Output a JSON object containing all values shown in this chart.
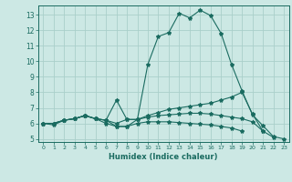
{
  "title": "",
  "xlabel": "Humidex (Indice chaleur)",
  "ylabel": "",
  "background_color": "#cce8e4",
  "grid_color": "#aacfca",
  "line_color": "#1a6b60",
  "xlim": [
    -0.5,
    23.5
  ],
  "ylim": [
    4.8,
    13.6
  ],
  "yticks": [
    5,
    6,
    7,
    8,
    9,
    10,
    11,
    12,
    13
  ],
  "xticks": [
    0,
    1,
    2,
    3,
    4,
    5,
    6,
    7,
    8,
    9,
    10,
    11,
    12,
    13,
    14,
    15,
    16,
    17,
    18,
    19,
    20,
    21,
    22,
    23
  ],
  "series": [
    [
      6.0,
      5.9,
      6.2,
      6.3,
      6.5,
      6.3,
      6.2,
      5.8,
      5.8,
      6.25,
      9.8,
      11.6,
      11.85,
      13.1,
      12.8,
      13.3,
      12.95,
      11.8,
      9.8,
      8.1,
      6.55,
      5.85,
      5.15,
      5.0
    ],
    [
      6.0,
      6.0,
      6.2,
      6.3,
      6.5,
      6.3,
      6.2,
      7.5,
      6.25,
      6.25,
      6.5,
      6.7,
      6.9,
      7.0,
      7.1,
      7.2,
      7.3,
      7.5,
      7.7,
      8.0,
      6.6,
      5.5,
      5.1,
      null
    ],
    [
      6.0,
      6.0,
      6.2,
      6.3,
      6.5,
      6.3,
      6.2,
      6.0,
      6.25,
      6.25,
      6.4,
      6.5,
      6.55,
      6.6,
      6.65,
      6.65,
      6.6,
      6.5,
      6.4,
      6.3,
      6.1,
      5.5,
      null,
      null
    ],
    [
      6.0,
      6.0,
      6.2,
      6.3,
      6.5,
      6.3,
      6.0,
      5.8,
      5.8,
      6.0,
      6.1,
      6.1,
      6.1,
      6.05,
      6.0,
      5.95,
      5.9,
      5.8,
      5.7,
      5.5,
      null,
      null,
      null,
      null
    ]
  ]
}
